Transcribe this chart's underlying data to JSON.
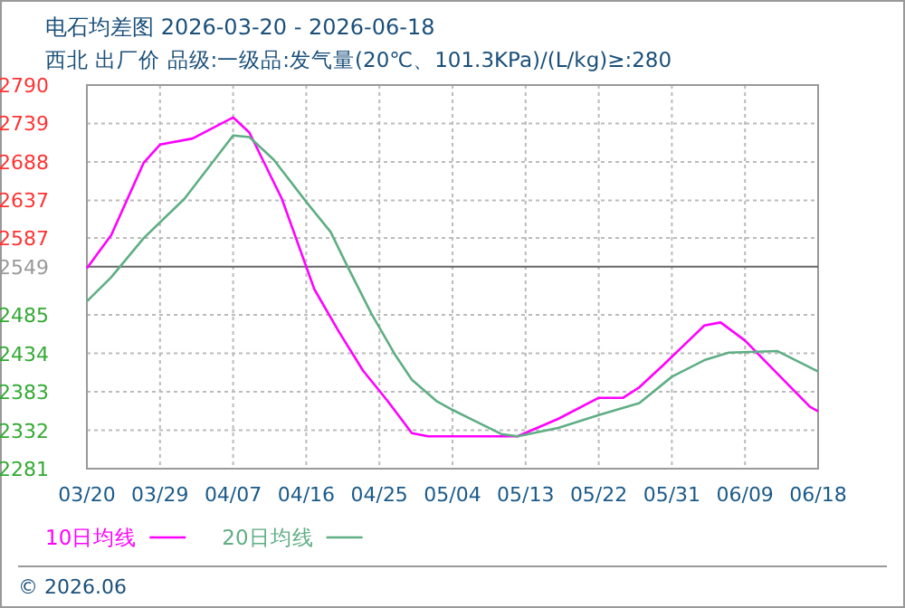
{
  "chart_data": {
    "type": "line",
    "title": "电石均差图 2026-03-20 - 2026-06-18",
    "subtitle": "西北 出厂价 品级:一级品:发气量(20℃、101.3KPa)/(L/kg)≥:280",
    "annotations": [
      "© 2026.06"
    ],
    "xlim": [
      "2026-03-20",
      "2026-06-18"
    ],
    "xticks": [
      {
        "value": "2026-03-20",
        "label": "03/20"
      },
      {
        "value": "2026-03-29",
        "label": "03/29"
      },
      {
        "value": "2026-04-07",
        "label": "04/07"
      },
      {
        "value": "2026-04-16",
        "label": "04/16"
      },
      {
        "value": "2026-04-25",
        "label": "04/25"
      },
      {
        "value": "2026-05-04",
        "label": "05/04"
      },
      {
        "value": "2026-05-13",
        "label": "05/13"
      },
      {
        "value": "2026-05-22",
        "label": "05/22"
      },
      {
        "value": "2026-05-31",
        "label": "05/31"
      },
      {
        "value": "2026-06-09",
        "label": "06/09"
      },
      {
        "value": "2026-06-18",
        "label": "06/18"
      }
    ],
    "ylim": [
      2281,
      2790
    ],
    "yticks": [
      2281,
      2332,
      2383,
      2434,
      2485,
      2587,
      2637,
      2688,
      2739,
      2790
    ],
    "ref_lines": [
      {
        "axis": "y",
        "value": 2549,
        "label": "2549",
        "color": "#666666"
      }
    ],
    "grid": true,
    "legend": "bottom",
    "marker": "none",
    "line_style": "solid",
    "series": [
      {
        "name": "10日均线",
        "color": "#ff00ff",
        "x": [
          "2026-03-20",
          "2026-03-23",
          "2026-03-27",
          "2026-03-29",
          "2026-04-02",
          "2026-04-07",
          "2026-04-09",
          "2026-04-13",
          "2026-04-17",
          "2026-04-20",
          "2026-04-23",
          "2026-04-26",
          "2026-04-29",
          "2026-05-01",
          "2026-05-12",
          "2026-05-17",
          "2026-05-22",
          "2026-05-25",
          "2026-05-27",
          "2026-05-30",
          "2026-06-04",
          "2026-06-06",
          "2026-06-09",
          "2026-06-13",
          "2026-06-17",
          "2026-06-18"
        ],
        "values": [
          2547,
          2591,
          2687,
          2711,
          2719,
          2747,
          2727,
          2639,
          2519,
          2463,
          2411,
          2371,
          2328,
          2324,
          2324,
          2347,
          2375,
          2375,
          2389,
          2419,
          2471,
          2475,
          2451,
          2407,
          2363,
          2357
        ]
      },
      {
        "name": "20日均线",
        "color": "#5fae84",
        "x": [
          "2026-03-20",
          "2026-03-23",
          "2026-03-27",
          "2026-04-01",
          "2026-04-07",
          "2026-04-09",
          "2026-04-12",
          "2026-04-16",
          "2026-04-19",
          "2026-04-21",
          "2026-04-24",
          "2026-04-27",
          "2026-04-29",
          "2026-05-02",
          "2026-05-04",
          "2026-05-07",
          "2026-05-10",
          "2026-05-12",
          "2026-05-17",
          "2026-05-22",
          "2026-05-27",
          "2026-05-31",
          "2026-06-04",
          "2026-06-07",
          "2026-06-13",
          "2026-06-18"
        ],
        "values": [
          2503,
          2535,
          2587,
          2639,
          2723,
          2721,
          2691,
          2635,
          2595,
          2551,
          2487,
          2431,
          2399,
          2371,
          2359,
          2343,
          2327,
          2324,
          2335,
          2352,
          2368,
          2403,
          2425,
          2435,
          2437,
          2410
        ]
      }
    ]
  }
}
